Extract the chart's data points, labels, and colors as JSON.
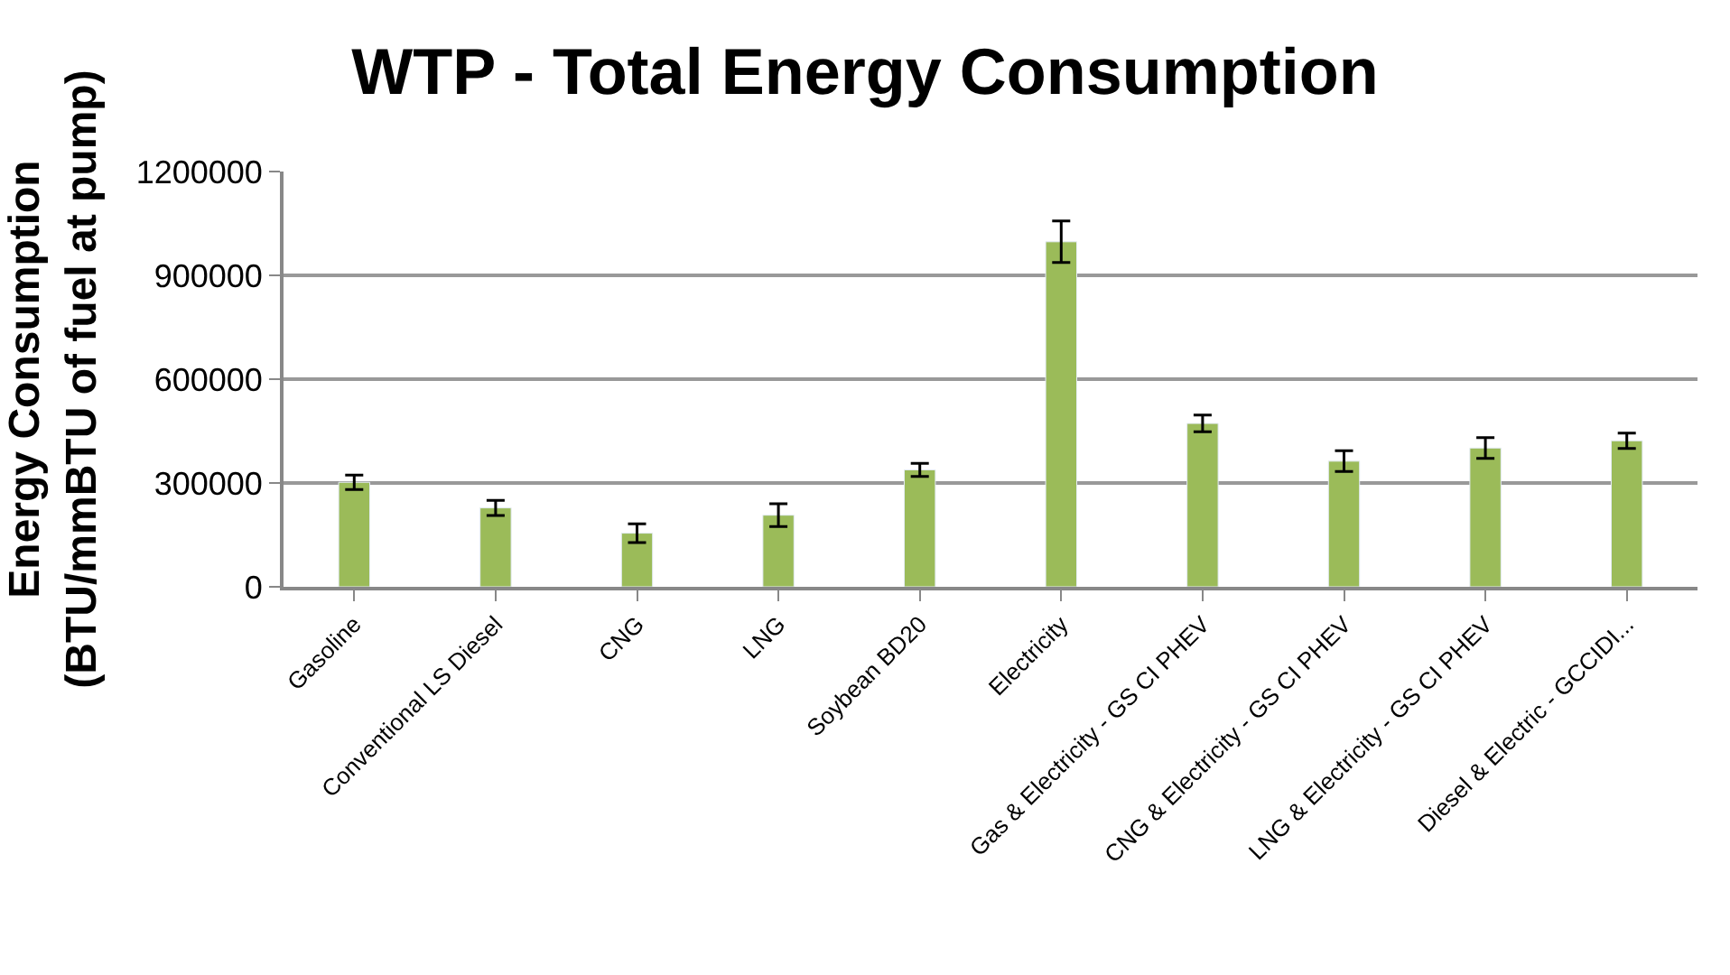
{
  "chart_data": {
    "type": "bar",
    "title": "WTP - Total Energy Consumption",
    "ylabel": "Energy Consumption\n(BTU/mmBTU of fuel at pump)",
    "categories": [
      "Gasoline",
      "Conventional LS Diesel",
      "CNG",
      "LNG",
      "Soybean BD20",
      "Electricity",
      "Gas & Electricity - GS CI PHEV",
      "CNG & Electricity - GS CI PHEV",
      "LNG & Electricity - GS CI PHEV",
      "Diesel & Electric - GCCIDI..."
    ],
    "values": [
      302000,
      228000,
      155000,
      207000,
      338000,
      997000,
      472000,
      363000,
      401000,
      422000
    ],
    "errors": [
      21000,
      22000,
      27000,
      33000,
      19000,
      60000,
      24000,
      30000,
      30000,
      22000
    ],
    "color": "#9bbb59",
    "ylim": [
      0,
      1200000
    ],
    "yticks": [
      0,
      300000,
      600000,
      900000,
      1200000
    ],
    "grid": "y"
  }
}
